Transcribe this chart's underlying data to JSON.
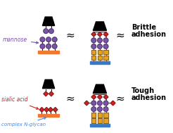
{
  "fig_width": 2.46,
  "fig_height": 1.89,
  "dpi": 100,
  "bg_color": "#ffffff",
  "purple": "#7B52AB",
  "red": "#D02020",
  "yellow": "#E8A020",
  "orange_bar": "#F07830",
  "blue_bar": "#3878C8",
  "label_mannose_color": "#7B52AB",
  "label_sialic_color": "#D02020",
  "label_nglycan_color": "#4488EE",
  "approx_symbol": "≈",
  "label_mannose": "mannose",
  "label_sialic": "sialic acid",
  "label_nglycan": "complex N-glycan"
}
